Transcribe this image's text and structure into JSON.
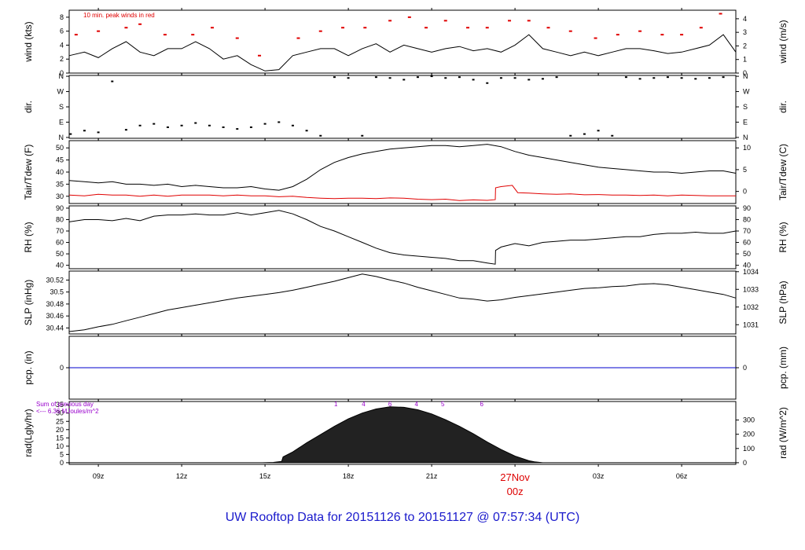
{
  "footer_title": "UW Rooftop Data for 20151126  to  20151127 @ 07:57:34  (UTC)",
  "colors": {
    "series": "#000000",
    "peak": "#e00000",
    "pcp": "#0000cc",
    "rad_note": "#9900cc",
    "date_label": "#dd0000",
    "title": "#1a1acc"
  },
  "time_axis": {
    "start_hour_utc": 7.95,
    "end_hour_utc": 31.95,
    "ticks": [
      {
        "hour": 9,
        "label": "09z"
      },
      {
        "hour": 12,
        "label": "12z"
      },
      {
        "hour": 15,
        "label": "15z"
      },
      {
        "hour": 18,
        "label": "18z"
      },
      {
        "hour": 21,
        "label": "21z"
      },
      {
        "hour": 24,
        "label": ""
      },
      {
        "hour": 27,
        "label": "03z"
      },
      {
        "hour": 30,
        "label": "06z"
      }
    ],
    "date_label": "27Nov",
    "date_label_hour": "00z"
  },
  "chart_data": [
    {
      "type": "line",
      "id": "wind",
      "ylabel_left": "wind (kts)",
      "ylabel_right": "wind (m/s)",
      "annotation": "10 min. peak winds in red",
      "ylim": [
        0,
        9
      ],
      "left_ticks": [
        0,
        2,
        4,
        6,
        8
      ],
      "right_ticks": [
        0,
        1,
        2,
        3,
        4
      ],
      "right_scale": 0.5144,
      "series": [
        {
          "role": "mean",
          "x": [
            7.95,
            8.5,
            9,
            9.5,
            10,
            10.5,
            11,
            11.5,
            12,
            12.5,
            13,
            13.5,
            14,
            14.5,
            15,
            15.5,
            16,
            16.5,
            17,
            17.5,
            18,
            18.5,
            19,
            19.5,
            20,
            20.5,
            21,
            21.5,
            22,
            22.5,
            23,
            23.5,
            24,
            24.5,
            25,
            25.5,
            26,
            26.5,
            27,
            27.5,
            28,
            28.5,
            29,
            29.5,
            30,
            30.5,
            31,
            31.5,
            31.95
          ],
          "y": [
            2.5,
            3,
            2.2,
            3.5,
            4.5,
            3,
            2.5,
            3.5,
            3.5,
            4.5,
            3.5,
            2,
            2.5,
            1.2,
            0.3,
            0.5,
            2.5,
            3,
            3.5,
            3.5,
            2.5,
            3.5,
            4.2,
            3,
            4,
            3.5,
            3,
            3.5,
            3.8,
            3.2,
            3.5,
            3,
            4,
            5.5,
            3.5,
            3,
            2.5,
            3,
            2.5,
            3,
            3.5,
            3.5,
            3.2,
            2.8,
            3,
            3.5,
            4,
            5.5,
            3
          ]
        },
        {
          "role": "peak",
          "x": [
            8.2,
            9,
            10,
            10.5,
            11.4,
            12.4,
            13.1,
            14,
            14.8,
            16.2,
            17,
            17.8,
            18.6,
            19.5,
            20.2,
            20.8,
            21.5,
            22.3,
            23,
            23.8,
            24.5,
            25.2,
            26,
            26.9,
            27.7,
            28.5,
            29.3,
            30,
            30.7,
            31.4
          ],
          "y": [
            5.5,
            6,
            6.5,
            7,
            5.5,
            5.5,
            6.5,
            5,
            2.5,
            5,
            6,
            6.5,
            6.5,
            7.5,
            8,
            6.5,
            7.5,
            6.5,
            6.5,
            7.5,
            7.5,
            6.5,
            6,
            5,
            5.5,
            6,
            5.5,
            5.5,
            6.5,
            8.5
          ]
        }
      ]
    },
    {
      "type": "scatter",
      "id": "dir",
      "ylabel_left": "dir.",
      "ylabel_right": "dir.",
      "ylim": [
        -5,
        365
      ],
      "tick_values": [
        0,
        90,
        180,
        270,
        360
      ],
      "tick_labels": [
        "N",
        "E",
        "S",
        "W",
        "N"
      ],
      "series": [
        {
          "role": "direction",
          "x": [
            8,
            8.5,
            9,
            9.5,
            10,
            10.5,
            11,
            11.5,
            12,
            12.5,
            13,
            13.5,
            14,
            14.5,
            15,
            15.5,
            16,
            16.5,
            17,
            17.5,
            18,
            18.5,
            19,
            19.5,
            20,
            20.5,
            21,
            21.5,
            22,
            22.5,
            23,
            23.5,
            24,
            24.5,
            25,
            25.5,
            26,
            26.5,
            27,
            27.5,
            28,
            28.5,
            29,
            29.5,
            30,
            30.5,
            31,
            31.5
          ],
          "y": [
            20,
            40,
            30,
            330,
            45,
            70,
            80,
            60,
            70,
            85,
            70,
            60,
            50,
            60,
            80,
            90,
            70,
            40,
            10,
            355,
            350,
            10,
            355,
            350,
            340,
            355,
            360,
            350,
            355,
            340,
            320,
            350,
            350,
            340,
            345,
            355,
            10,
            20,
            40,
            10,
            355,
            345,
            350,
            355,
            350,
            345,
            350,
            355
          ]
        }
      ]
    },
    {
      "type": "line",
      "id": "temp",
      "ylabel_left": "Tair/Tdew (F)",
      "ylabel_right": "Tair/Tdew (C)",
      "ylim": [
        27,
        53
      ],
      "left_ticks": [
        30,
        35,
        40,
        45,
        50
      ],
      "right_ticks": [
        0,
        5,
        10
      ],
      "series": [
        {
          "role": "tair",
          "x": [
            7.95,
            8.5,
            9,
            9.5,
            10,
            10.5,
            11,
            11.5,
            12,
            12.5,
            13,
            13.5,
            14,
            14.5,
            15,
            15.5,
            16,
            16.5,
            17,
            17.5,
            18,
            18.5,
            19,
            19.5,
            20,
            20.5,
            21,
            21.5,
            22,
            22.5,
            23,
            23.5,
            24,
            24.5,
            25,
            25.5,
            26,
            26.5,
            27,
            27.5,
            28,
            28.5,
            29,
            29.5,
            30,
            30.5,
            31,
            31.5,
            31.95
          ],
          "y": [
            36.5,
            36,
            35.5,
            36,
            35,
            35,
            34.5,
            35,
            34,
            34.5,
            34,
            33.5,
            33.5,
            34,
            33,
            32.5,
            34,
            37,
            41,
            44,
            46,
            47.5,
            48.5,
            49.5,
            50,
            50.5,
            51,
            51,
            50.5,
            51,
            51.5,
            50.5,
            48.5,
            47,
            46,
            45,
            44,
            43,
            42,
            41.5,
            41,
            40.5,
            40,
            40,
            39.5,
            40,
            40.5,
            40.5,
            39.5
          ]
        },
        {
          "role": "tdew",
          "x": [
            7.95,
            8.5,
            9,
            9.5,
            10,
            10.5,
            11,
            11.5,
            12,
            12.5,
            13,
            13.5,
            14,
            14.5,
            15,
            15.5,
            16,
            16.5,
            17,
            17.5,
            18,
            18.5,
            19,
            19.5,
            20,
            20.5,
            21,
            21.5,
            22,
            22.5,
            23,
            23.29,
            23.3,
            23.5,
            23.9,
            24.1,
            24.5,
            25,
            25.5,
            26,
            26.5,
            27,
            27.5,
            28,
            28.5,
            29,
            29.5,
            30,
            30.5,
            31,
            31.5,
            31.95
          ],
          "y": [
            30.5,
            30.2,
            30.8,
            30.5,
            30.5,
            30,
            30.5,
            30,
            30.5,
            30.5,
            30.5,
            30.2,
            30.5,
            30.2,
            30.2,
            29.8,
            30,
            29.5,
            29.2,
            29,
            29.2,
            29.2,
            29,
            29.3,
            29.2,
            28.8,
            28.6,
            28.8,
            28.2,
            28.5,
            28.3,
            28.6,
            33.5,
            34,
            34.5,
            31.5,
            31.3,
            31,
            30.8,
            31,
            30.6,
            30.7,
            30.5,
            30.5,
            30.3,
            30.5,
            30.2,
            30.5,
            30.3,
            30.2,
            30.2,
            30.2
          ]
        }
      ]
    },
    {
      "type": "line",
      "id": "rh",
      "ylabel_left": "RH (%)",
      "ylabel_right": "RH (%)",
      "ylim": [
        37,
        92
      ],
      "left_ticks": [
        40,
        50,
        60,
        70,
        80,
        90
      ],
      "right_ticks": [
        40,
        50,
        60,
        70,
        80,
        90
      ],
      "series": [
        {
          "role": "rh",
          "x": [
            7.95,
            8.5,
            9,
            9.5,
            10,
            10.5,
            11,
            11.5,
            12,
            12.5,
            13,
            13.5,
            14,
            14.5,
            15,
            15.5,
            16,
            16.5,
            17,
            17.5,
            18,
            18.5,
            19,
            19.5,
            20,
            20.5,
            21,
            21.5,
            22,
            22.5,
            23,
            23.29,
            23.3,
            23.5,
            24,
            24.5,
            25,
            25.5,
            26,
            26.5,
            27,
            27.5,
            28,
            28.5,
            29,
            29.5,
            30,
            30.5,
            31,
            31.5,
            31.95
          ],
          "y": [
            78,
            80,
            80,
            79,
            81,
            79,
            83,
            84,
            84,
            85,
            84,
            84,
            86,
            84,
            86,
            88,
            85,
            80,
            74,
            70,
            65,
            60,
            55,
            51,
            49,
            48,
            47,
            46,
            44,
            44,
            42,
            41,
            53,
            56,
            59,
            57,
            60,
            61,
            62,
            62,
            63,
            64,
            65,
            65,
            67,
            68,
            68,
            69,
            68,
            68,
            70
          ]
        }
      ]
    },
    {
      "type": "line",
      "id": "slp",
      "ylabel_left": "SLP (inHg)",
      "ylabel_right": "SLP (hPa)",
      "ylim": [
        30.43,
        30.535
      ],
      "left_ticks": [
        30.44,
        30.46,
        30.48,
        30.5,
        30.52
      ],
      "right_ticks": [
        1031,
        1032,
        1033,
        1034
      ],
      "series": [
        {
          "role": "slp",
          "x": [
            7.95,
            8.5,
            9,
            9.5,
            10,
            10.5,
            11,
            11.5,
            12,
            12.5,
            13,
            13.5,
            14,
            14.5,
            15,
            15.5,
            16,
            16.5,
            17,
            17.5,
            18,
            18.5,
            19,
            19.5,
            20,
            20.5,
            21,
            21.5,
            22,
            22.5,
            23,
            23.5,
            24,
            24.5,
            25,
            25.5,
            26,
            26.5,
            27,
            27.5,
            28,
            28.5,
            29,
            29.5,
            30,
            30.5,
            31,
            31.5,
            31.95
          ],
          "y": [
            30.434,
            30.437,
            30.442,
            30.446,
            30.452,
            30.458,
            30.464,
            30.47,
            30.474,
            30.478,
            30.482,
            30.486,
            30.49,
            30.493,
            30.496,
            30.499,
            30.503,
            30.508,
            30.513,
            30.518,
            30.524,
            30.53,
            30.526,
            30.52,
            30.515,
            30.508,
            30.502,
            30.496,
            30.49,
            30.488,
            30.485,
            30.487,
            30.491,
            30.494,
            30.497,
            30.5,
            30.503,
            30.506,
            30.507,
            30.509,
            30.51,
            30.513,
            30.514,
            30.512,
            30.508,
            30.504,
            30.5,
            30.496,
            30.49
          ]
        }
      ]
    },
    {
      "type": "line",
      "id": "pcp",
      "ylabel_left": "pcp. (in)",
      "ylabel_right": "pcp. (mm)",
      "ylim": [
        -0.5,
        0.5
      ],
      "left_ticks": [
        0
      ],
      "right_ticks": [
        0
      ],
      "series": [
        {
          "role": "pcp",
          "x": [
            7.95,
            31.95
          ],
          "y": [
            0,
            0
          ]
        }
      ]
    },
    {
      "type": "area",
      "id": "rad",
      "ylabel_left": "rad(Lgly/hr)",
      "ylabel_right": "rad (W/m^2)",
      "note": "Sum of previous day\n<--- 6.36 MJoules/m^2",
      "ylim": [
        -1,
        37
      ],
      "left_ticks": [
        0,
        5,
        10,
        15,
        20,
        25,
        30,
        35
      ],
      "right_ticks": [
        0,
        100,
        200,
        300
      ],
      "right_scale": 11.63,
      "uv_marks": [
        {
          "hour": 17.55,
          "label": "1"
        },
        {
          "hour": 18.55,
          "label": "4"
        },
        {
          "hour": 19.5,
          "label": "6"
        },
        {
          "hour": 20.45,
          "label": "4"
        },
        {
          "hour": 21.4,
          "label": "5"
        },
        {
          "hour": 22.8,
          "label": "6"
        }
      ],
      "series": [
        {
          "role": "radiation",
          "x": [
            7.95,
            14.9,
            15.3,
            15.6,
            15.65,
            16,
            16.5,
            17,
            17.5,
            18,
            18.5,
            19,
            19.5,
            20,
            20.5,
            21,
            21.5,
            22,
            22.5,
            23,
            23.5,
            24,
            24.5,
            24.7,
            25,
            31.95
          ],
          "y": [
            0,
            0,
            0.2,
            0.8,
            3.5,
            6.5,
            12,
            17,
            22,
            26.5,
            30,
            32.5,
            33.8,
            33.5,
            32,
            29.5,
            26,
            22,
            17.5,
            12.5,
            8,
            4,
            1.2,
            0.5,
            0,
            0
          ]
        }
      ]
    }
  ]
}
